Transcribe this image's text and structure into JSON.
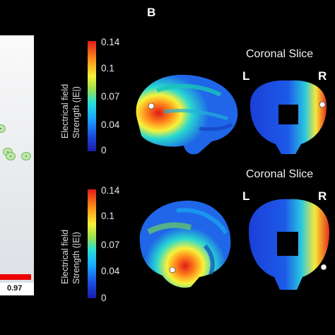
{
  "panel_label": "B",
  "left_fragment": {
    "nodes": [
      "a",
      "a",
      "a",
      "a"
    ],
    "bar_value": "0.97"
  },
  "colorbar_title": [
    "Electrical field",
    "Strength (|E|)"
  ],
  "colorbar_ticks": [
    "0.14",
    "0.1",
    "0.07",
    "0.04",
    "0"
  ],
  "rows": [
    {
      "slice_title": "Coronal Slice",
      "left_label": "L",
      "right_label": "R"
    },
    {
      "slice_title": "Coronal Slice",
      "left_label": "L",
      "right_label": "R"
    }
  ],
  "colors": {
    "background": "#000000",
    "colormap": [
      "#1a1aa8",
      "#1aa8ff",
      "#9be050",
      "#f7f23a",
      "#ff9a1a",
      "#e01a1a"
    ]
  }
}
